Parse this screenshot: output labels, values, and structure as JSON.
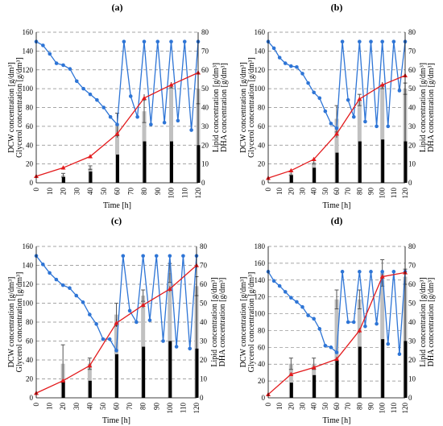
{
  "figure": {
    "panels": [
      "(a)",
      "(b)",
      "(c)",
      "(d)"
    ]
  },
  "chart_data": [
    {
      "type": "bar",
      "title": "(a)",
      "xlabel": "Time [h]",
      "ylabel": [
        "DCW concentration [g/dm³]",
        "Glycerol concentration [g/dm³]"
      ],
      "y2label": [
        "Lipid concentration [g/dm³]",
        "DHA concentration [g/dm³]"
      ],
      "xlim": [
        0,
        120
      ],
      "ylim": [
        0,
        160
      ],
      "y2lim": [
        0,
        80
      ],
      "x_ticks": [
        0,
        10,
        20,
        30,
        40,
        50,
        60,
        70,
        80,
        90,
        100,
        110,
        120
      ],
      "y_ticks": [
        0,
        20,
        40,
        60,
        80,
        100,
        120,
        140,
        160
      ],
      "y2_ticks": [
        0,
        10,
        20,
        30,
        40,
        50,
        60,
        70,
        80
      ],
      "grid": true,
      "series": [
        {
          "axis": "y2",
          "kind": "bar-gray",
          "x": [
            20,
            40,
            60,
            80,
            100,
            120
          ],
          "values": [
            4,
            8,
            31,
            38,
            51,
            50
          ],
          "err": [
            1,
            1,
            6,
            6,
            0.6,
            8
          ]
        },
        {
          "axis": "y2",
          "kind": "bar-black",
          "x": [
            20,
            40,
            60,
            80,
            100,
            120
          ],
          "values": [
            3,
            6,
            15,
            22,
            22,
            20
          ]
        },
        {
          "axis": "y",
          "kind": "line-red",
          "x": [
            0,
            20,
            40,
            60,
            80,
            100,
            120
          ],
          "values": [
            7,
            16,
            28,
            52,
            90,
            104,
            117
          ],
          "err": [
            0,
            2,
            2,
            4,
            4,
            3,
            2
          ]
        },
        {
          "axis": "y",
          "kind": "line-blue",
          "x": [
            0,
            5,
            10,
            15,
            20,
            25,
            30,
            35,
            40,
            45,
            50,
            55,
            60,
            65,
            70,
            75,
            80,
            85,
            90,
            95,
            100,
            105,
            110,
            115,
            120
          ],
          "values": [
            150,
            146,
            137,
            127,
            125,
            121,
            108,
            100,
            94,
            88,
            80,
            70,
            62,
            150,
            92,
            70,
            150,
            62,
            150,
            64,
            150,
            66,
            150,
            56,
            150
          ]
        }
      ]
    },
    {
      "type": "bar",
      "title": "(b)",
      "xlabel": "Time [h]",
      "ylabel": [
        "DCW concentration [g/dm³]",
        "Glycerol concentration [g/dm³]"
      ],
      "y2label": [
        "Lipid concentration [g/dm³]",
        "DHA concentration [g/dm³]"
      ],
      "xlim": [
        0,
        120
      ],
      "ylim": [
        0,
        160
      ],
      "y2lim": [
        0,
        80
      ],
      "x_ticks": [
        0,
        10,
        20,
        30,
        40,
        50,
        60,
        70,
        80,
        90,
        100,
        110,
        120
      ],
      "y_ticks": [
        0,
        20,
        40,
        60,
        80,
        100,
        120,
        140,
        160
      ],
      "y2_ticks": [
        0,
        10,
        20,
        30,
        40,
        50,
        60,
        70,
        80
      ],
      "grid": true,
      "series": [
        {
          "axis": "y2",
          "kind": "bar-gray",
          "x": [
            20,
            40,
            60,
            80,
            100,
            120
          ],
          "values": [
            5,
            11,
            34,
            44,
            51,
            50
          ],
          "err": [
            1,
            1,
            7,
            3,
            1,
            3
          ]
        },
        {
          "axis": "y2",
          "kind": "bar-black",
          "x": [
            20,
            40,
            60,
            80,
            100,
            120
          ],
          "values": [
            4,
            8,
            16,
            22,
            23,
            22
          ]
        },
        {
          "axis": "y",
          "kind": "line-red",
          "x": [
            0,
            20,
            40,
            60,
            80,
            100,
            120
          ],
          "values": [
            5,
            13,
            25,
            52,
            89,
            104,
            114
          ],
          "err": [
            0,
            1,
            2,
            4,
            2,
            3,
            2
          ]
        },
        {
          "axis": "y",
          "kind": "line-blue",
          "x": [
            0,
            5,
            10,
            15,
            20,
            25,
            30,
            35,
            40,
            45,
            50,
            55,
            60,
            65,
            70,
            75,
            80,
            85,
            90,
            95,
            100,
            105,
            110,
            115,
            120
          ],
          "values": [
            150,
            143,
            133,
            127,
            124,
            123,
            116,
            106,
            96,
            90,
            76,
            63,
            58,
            150,
            88,
            70,
            150,
            65,
            150,
            60,
            150,
            60,
            150,
            98,
            150
          ]
        }
      ]
    },
    {
      "type": "bar",
      "title": "(c)",
      "xlabel": "Time [h]",
      "ylabel": [
        "DCW concentration [g/dm³]",
        "Glycerol concentration [g/dm³]"
      ],
      "y2label": [
        "Lipid concentration [g/dm³]",
        "DHA concentration [g/dm³]"
      ],
      "xlim": [
        0,
        120
      ],
      "ylim": [
        0,
        160
      ],
      "y2lim": [
        0,
        80
      ],
      "x_ticks": [
        0,
        10,
        20,
        30,
        40,
        50,
        60,
        70,
        80,
        90,
        100,
        110,
        120
      ],
      "y_ticks": [
        0,
        20,
        40,
        60,
        80,
        100,
        120,
        140,
        160
      ],
      "y2_ticks": [
        0,
        10,
        20,
        30,
        40,
        50,
        60,
        70,
        80
      ],
      "grid": true,
      "series": [
        {
          "axis": "y2",
          "kind": "bar-gray",
          "x": [
            20,
            40,
            60,
            80,
            100,
            120
          ],
          "values": [
            18,
            18,
            44,
            54,
            66,
            59
          ],
          "err": [
            10,
            3,
            6,
            3,
            5,
            5
          ]
        },
        {
          "axis": "y2",
          "kind": "bar-black",
          "x": [
            20,
            40,
            60,
            80,
            100,
            120
          ],
          "values": [
            9,
            9,
            23,
            27,
            30,
            26
          ]
        },
        {
          "axis": "y",
          "kind": "line-red",
          "x": [
            0,
            20,
            40,
            60,
            80,
            100,
            120
          ],
          "values": [
            5,
            18,
            34,
            79,
            98,
            115,
            140
          ],
          "err": [
            0,
            2,
            3,
            4,
            3,
            3,
            3
          ]
        },
        {
          "axis": "y",
          "kind": "line-blue",
          "x": [
            0,
            5,
            10,
            15,
            20,
            25,
            30,
            35,
            40,
            45,
            50,
            55,
            60,
            65,
            70,
            75,
            80,
            85,
            90,
            95,
            100,
            105,
            110,
            115,
            120
          ],
          "values": [
            150,
            141,
            132,
            125,
            119,
            116,
            108,
            101,
            88,
            78,
            62,
            62,
            50,
            150,
            92,
            80,
            150,
            82,
            150,
            60,
            150,
            54,
            150,
            52,
            150
          ]
        }
      ]
    },
    {
      "type": "bar",
      "title": "(d)",
      "xlabel": "Time [h]",
      "ylabel": [
        "DCW concentration [g/dm³]",
        "Glycerol concentration [g/dm³]"
      ],
      "y2label": [
        "Lipid concentration [g/dm³]",
        "DHA concentration [g/dm³]"
      ],
      "xlim": [
        0,
        120
      ],
      "ylim": [
        0,
        180
      ],
      "y2lim": [
        0,
        80
      ],
      "x_ticks": [
        0,
        10,
        20,
        30,
        40,
        50,
        60,
        70,
        80,
        90,
        100,
        110,
        120
      ],
      "y_ticks": [
        0,
        20,
        40,
        60,
        80,
        100,
        120,
        140,
        160,
        180
      ],
      "y2_ticks": [
        0,
        10,
        20,
        30,
        40,
        50,
        60,
        70,
        80
      ],
      "grid": true,
      "series": [
        {
          "axis": "y2",
          "kind": "bar-gray",
          "x": [
            20,
            40,
            60,
            80,
            100,
            120
          ],
          "values": [
            18,
            18,
            52,
            52,
            66,
            64
          ],
          "err": [
            3,
            3,
            5,
            5,
            7,
            4
          ]
        },
        {
          "axis": "y2",
          "kind": "bar-black",
          "x": [
            20,
            40,
            60,
            80,
            100,
            120
          ],
          "values": [
            8,
            12,
            20,
            27,
            31,
            30
          ]
        },
        {
          "axis": "y",
          "kind": "line-red",
          "x": [
            0,
            20,
            40,
            60,
            80,
            100,
            120
          ],
          "values": [
            4,
            28,
            36,
            46,
            80,
            144,
            149
          ],
          "err": [
            0,
            2,
            2,
            3,
            3,
            3,
            3
          ]
        },
        {
          "axis": "y",
          "kind": "line-blue",
          "x": [
            0,
            5,
            10,
            15,
            20,
            25,
            30,
            35,
            40,
            45,
            50,
            55,
            60,
            65,
            70,
            75,
            80,
            85,
            90,
            95,
            100,
            105,
            110,
            115,
            120
          ],
          "values": [
            150,
            139,
            133,
            126,
            119,
            114,
            108,
            98,
            94,
            82,
            62,
            60,
            54,
            150,
            90,
            90,
            150,
            85,
            150,
            88,
            150,
            64,
            150,
            52,
            150
          ]
        }
      ]
    }
  ],
  "colors": {
    "red": "#e31a1c",
    "blue": "#2e75d6",
    "bar_gray": "#c0c0c0",
    "bar_black": "#000000",
    "grid": "#888888"
  }
}
